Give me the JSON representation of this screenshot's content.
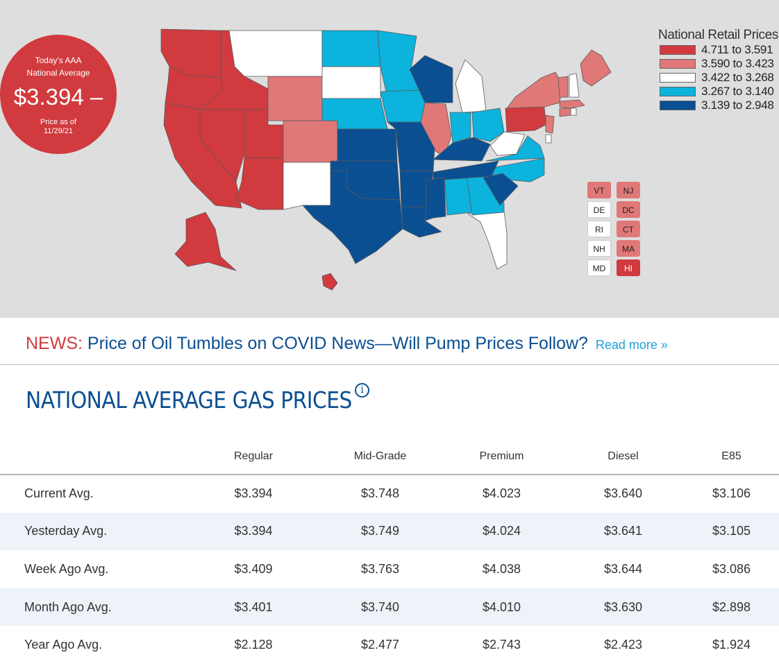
{
  "badge": {
    "line1": "Today's AAA",
    "line2": "National Average",
    "price": "$3.394",
    "trend": "–",
    "asof_line1": "Price as of",
    "asof_line2": "11/29/21"
  },
  "legend": {
    "title": "National Retail Prices",
    "items": [
      {
        "label": "4.711 to 3.591",
        "color": "#d13a3e"
      },
      {
        "label": "3.590 to 3.423",
        "color": "#e07877"
      },
      {
        "label": "3.422 to 3.268",
        "color": "#ffffff"
      },
      {
        "label": "3.267 to 3.140",
        "color": "#0bb3dd"
      },
      {
        "label": "3.139 to 2.948",
        "color": "#0a4f92"
      }
    ]
  },
  "map": {
    "states": [
      {
        "code": "WA",
        "tier": 0
      },
      {
        "code": "OR",
        "tier": 0
      },
      {
        "code": "CA",
        "tier": 0
      },
      {
        "code": "NV",
        "tier": 0
      },
      {
        "code": "ID",
        "tier": 0
      },
      {
        "code": "UT",
        "tier": 0
      },
      {
        "code": "AZ",
        "tier": 0
      },
      {
        "code": "AK",
        "tier": 0
      },
      {
        "code": "HI",
        "tier": 0
      },
      {
        "code": "PA",
        "tier": 0
      },
      {
        "code": "WY",
        "tier": 1
      },
      {
        "code": "CO",
        "tier": 1
      },
      {
        "code": "IL",
        "tier": 1
      },
      {
        "code": "NY",
        "tier": 1
      },
      {
        "code": "ME",
        "tier": 1
      },
      {
        "code": "NJ",
        "tier": 1
      },
      {
        "code": "VT",
        "tier": 1
      },
      {
        "code": "MA",
        "tier": 1
      },
      {
        "code": "CT",
        "tier": 1
      },
      {
        "code": "DC",
        "tier": 1
      },
      {
        "code": "MT",
        "tier": 2
      },
      {
        "code": "SD",
        "tier": 2
      },
      {
        "code": "NM",
        "tier": 2
      },
      {
        "code": "MI",
        "tier": 2
      },
      {
        "code": "WV",
        "tier": 2
      },
      {
        "code": "FL",
        "tier": 2
      },
      {
        "code": "NH",
        "tier": 2
      },
      {
        "code": "DE",
        "tier": 2
      },
      {
        "code": "RI",
        "tier": 2
      },
      {
        "code": "MD",
        "tier": 2
      },
      {
        "code": "ND",
        "tier": 3
      },
      {
        "code": "MN",
        "tier": 3
      },
      {
        "code": "NE",
        "tier": 3
      },
      {
        "code": "IA",
        "tier": 3
      },
      {
        "code": "IN",
        "tier": 3
      },
      {
        "code": "OH",
        "tier": 3
      },
      {
        "code": "VA",
        "tier": 3
      },
      {
        "code": "NC",
        "tier": 3
      },
      {
        "code": "AL",
        "tier": 3
      },
      {
        "code": "GA",
        "tier": 3
      },
      {
        "code": "WI",
        "tier": 4
      },
      {
        "code": "KS",
        "tier": 4
      },
      {
        "code": "MO",
        "tier": 4
      },
      {
        "code": "KY",
        "tier": 4
      },
      {
        "code": "TN",
        "tier": 4
      },
      {
        "code": "OK",
        "tier": 4
      },
      {
        "code": "AR",
        "tier": 4
      },
      {
        "code": "TX",
        "tier": 4
      },
      {
        "code": "LA",
        "tier": 4
      },
      {
        "code": "MS",
        "tier": 4
      },
      {
        "code": "SC",
        "tier": 4
      }
    ],
    "small_states": [
      {
        "code": "VT",
        "tier": 1
      },
      {
        "code": "NJ",
        "tier": 1
      },
      {
        "code": "DE",
        "tier": 2
      },
      {
        "code": "DC",
        "tier": 1
      },
      {
        "code": "RI",
        "tier": 2
      },
      {
        "code": "CT",
        "tier": 1
      },
      {
        "code": "NH",
        "tier": 2
      },
      {
        "code": "MA",
        "tier": 1
      },
      {
        "code": "MD",
        "tier": 2
      },
      {
        "code": "HI",
        "tier": 0
      }
    ]
  },
  "news": {
    "prefix": "NEWS:",
    "headline": "Price of Oil Tumbles on COVID News—Will Pump Prices Follow?",
    "read_more": "Read more »"
  },
  "section": {
    "title": "NATIONAL AVERAGE GAS PRICES",
    "info_icon": "info-icon"
  },
  "table": {
    "columns": [
      "Regular",
      "Mid-Grade",
      "Premium",
      "Diesel",
      "E85"
    ],
    "rows": [
      {
        "label": "Current Avg.",
        "values": [
          "$3.394",
          "$3.748",
          "$4.023",
          "$3.640",
          "$3.106"
        ]
      },
      {
        "label": "Yesterday Avg.",
        "values": [
          "$3.394",
          "$3.749",
          "$4.024",
          "$3.641",
          "$3.105"
        ]
      },
      {
        "label": "Week Ago Avg.",
        "values": [
          "$3.409",
          "$3.763",
          "$4.038",
          "$3.644",
          "$3.086"
        ]
      },
      {
        "label": "Month Ago Avg.",
        "values": [
          "$3.401",
          "$3.740",
          "$4.010",
          "$3.630",
          "$2.898"
        ]
      },
      {
        "label": "Year Ago Avg.",
        "values": [
          "$2.128",
          "$2.477",
          "$2.743",
          "$2.423",
          "$1.924"
        ]
      }
    ]
  }
}
